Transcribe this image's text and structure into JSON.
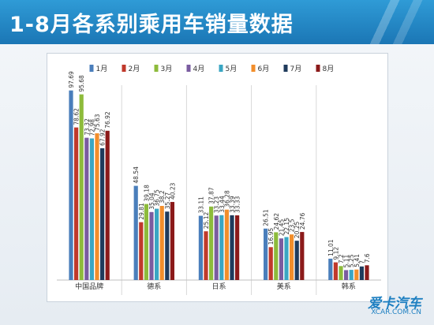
{
  "header": {
    "title": "1-8月各系别乘用车销量数据"
  },
  "watermark": {
    "logo": "爱卡汽车",
    "url": "XCAR.COM.CN"
  },
  "colors": {
    "header_bg": "#1b76b5",
    "series": [
      "#4a7ebb",
      "#c0392b",
      "#8dbb3b",
      "#7a5ca0",
      "#3aa6c3",
      "#f28e2b",
      "#1f3b5c",
      "#8b1a1a"
    ]
  },
  "chart_data": {
    "type": "bar",
    "title": "",
    "xlabel": "",
    "ylabel": "",
    "categories": [
      "中国品牌",
      "德系",
      "日系",
      "美系",
      "韩系"
    ],
    "series": [
      {
        "name": "1月",
        "values": [
          97.69,
          48.54,
          33.11,
          26.51,
          11.01
        ]
      },
      {
        "name": "2月",
        "values": [
          78.62,
          29.81,
          25.12,
          16.95,
          9.12
        ]
      },
      {
        "name": "3月",
        "values": [
          95.68,
          39.18,
          37.87,
          24.62,
          7.2
        ]
      },
      {
        "name": "4月",
        "values": [
          73.32,
          35.04,
          33.23,
          21.45,
          5.11
        ]
      },
      {
        "name": "5月",
        "values": [
          72.98,
          36.75,
          33.44,
          22.15,
          5.25
        ]
      },
      {
        "name": "6月",
        "values": [
          75.63,
          38.2,
          36.28,
          23.5,
          5.41
        ]
      },
      {
        "name": "7月",
        "values": [
          67.92,
          35.27,
          33.39,
          20.25,
          7
        ]
      },
      {
        "name": "8月",
        "values": [
          76.92,
          40.23,
          33.33,
          24.76,
          7.6
        ]
      }
    ],
    "ylim": [
      0,
      100
    ],
    "grid": false,
    "legend": "top-center",
    "separators": true
  }
}
